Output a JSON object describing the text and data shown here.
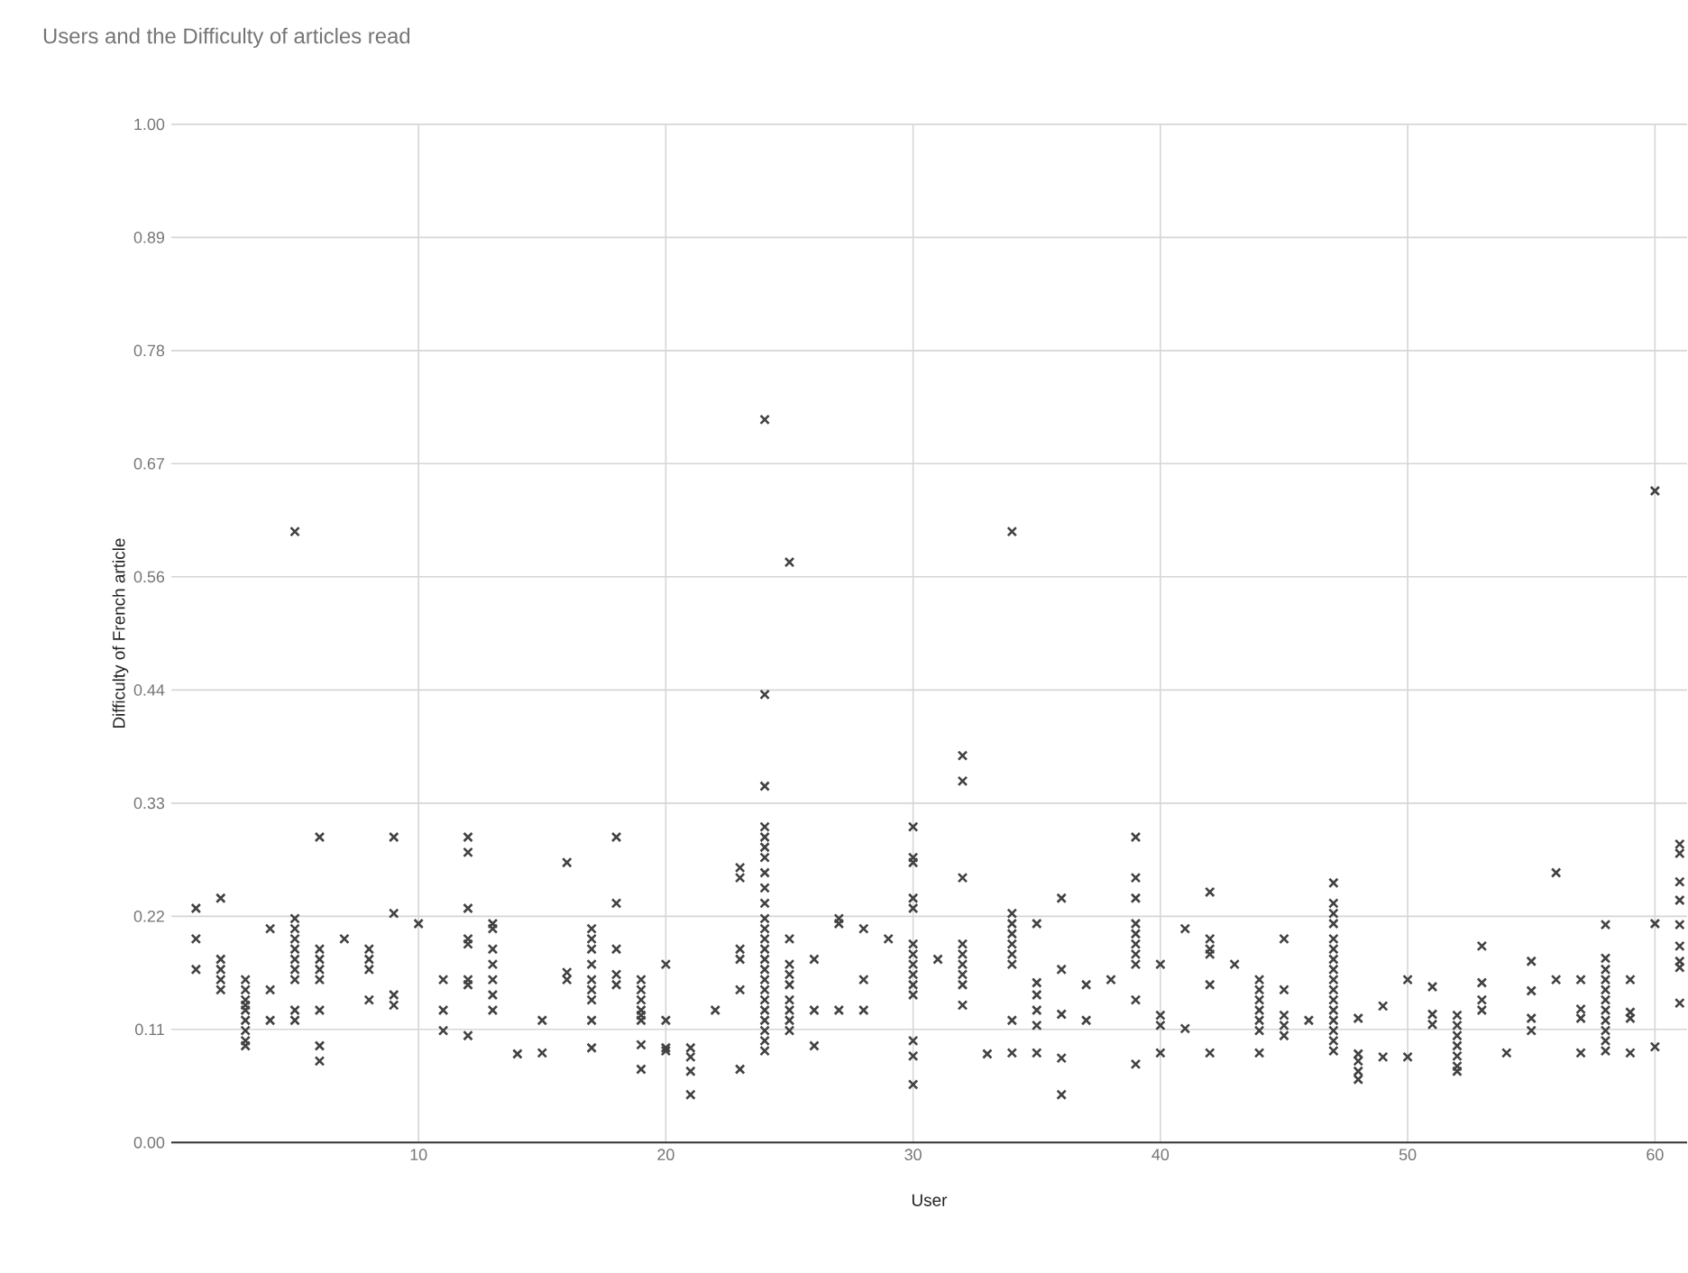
{
  "chart_data": {
    "type": "scatter",
    "title": "Users and the Difficulty of articles read",
    "xlabel": "User",
    "ylabel": "Difficulty of French article",
    "xlim": [
      0,
      61.3
    ],
    "xticks": [
      10,
      20,
      30,
      40,
      50,
      60
    ],
    "ylim": [
      0,
      1
    ],
    "yticks": [
      {
        "value": 0,
        "label": "0.00"
      },
      {
        "value": 0.1111,
        "label": "0.11"
      },
      {
        "value": 0.2222,
        "label": "0.22"
      },
      {
        "value": 0.3333,
        "label": "0.33"
      },
      {
        "value": 0.4444,
        "label": "0.44"
      },
      {
        "value": 0.5556,
        "label": "0.56"
      },
      {
        "value": 0.6667,
        "label": "0.67"
      },
      {
        "value": 0.7778,
        "label": "0.78"
      },
      {
        "value": 0.8889,
        "label": "0.89"
      },
      {
        "value": 1,
        "label": "1.00"
      }
    ],
    "grid": true,
    "marker": "cross",
    "series": [
      {
        "color": "#424242",
        "x": [
          1,
          1,
          1,
          2,
          2,
          2,
          2,
          2,
          3,
          3,
          3,
          3,
          3,
          3,
          3,
          3,
          3,
          4,
          4,
          4,
          5,
          5,
          5,
          5,
          5,
          5,
          5,
          5,
          5,
          5,
          6,
          6,
          6,
          6,
          6,
          6,
          6,
          6,
          7,
          8,
          8,
          8,
          8,
          9,
          9,
          9,
          9,
          10,
          11,
          11,
          11,
          12,
          12,
          12,
          12,
          12,
          12,
          12,
          12,
          13,
          13,
          13,
          13,
          13,
          13,
          13,
          14,
          15,
          15,
          16,
          16,
          16,
          17,
          17,
          17,
          17,
          17,
          17,
          17,
          17,
          17,
          18,
          18,
          18,
          18,
          18,
          19,
          19,
          19,
          19,
          19,
          19,
          19,
          19,
          20,
          20,
          20,
          20,
          21,
          21,
          21,
          21,
          22,
          23,
          23,
          23,
          23,
          23,
          23,
          24,
          24,
          24,
          24,
          24,
          24,
          24,
          24,
          24,
          24,
          24,
          24,
          24,
          24,
          24,
          24,
          24,
          24,
          24,
          24,
          24,
          24,
          24,
          24,
          25,
          25,
          25,
          25,
          25,
          25,
          25,
          25,
          25,
          26,
          26,
          26,
          27,
          27,
          27,
          28,
          28,
          28,
          29,
          30,
          30,
          30,
          30,
          30,
          30,
          30,
          30,
          30,
          30,
          30,
          30,
          30,
          30,
          31,
          32,
          32,
          32,
          32,
          32,
          32,
          32,
          32,
          32,
          33,
          34,
          34,
          34,
          34,
          34,
          34,
          34,
          34,
          34,
          35,
          35,
          35,
          35,
          35,
          35,
          36,
          36,
          36,
          36,
          36,
          37,
          37,
          38,
          39,
          39,
          39,
          39,
          39,
          39,
          39,
          39,
          39,
          39,
          40,
          40,
          40,
          40,
          41,
          41,
          42,
          42,
          42,
          42,
          42,
          42,
          43,
          44,
          44,
          44,
          44,
          44,
          44,
          44,
          45,
          45,
          45,
          45,
          45,
          46,
          47,
          47,
          47,
          47,
          47,
          47,
          47,
          47,
          47,
          47,
          47,
          47,
          47,
          47,
          47,
          47,
          48,
          48,
          48,
          48,
          48,
          49,
          49,
          50,
          50,
          51,
          51,
          51,
          52,
          52,
          52,
          52,
          52,
          52,
          52,
          53,
          53,
          53,
          53,
          54,
          55,
          55,
          55,
          55,
          56,
          56,
          57,
          57,
          57,
          57,
          58,
          58,
          58,
          58,
          58,
          58,
          58,
          58,
          58,
          58,
          58,
          59,
          59,
          59,
          59,
          60,
          60,
          60,
          61,
          61,
          61,
          61,
          61,
          61,
          61,
          61,
          61
        ],
        "values": [
          0.23,
          0.2,
          0.17,
          0.24,
          0.18,
          0.17,
          0.16,
          0.15,
          0.16,
          0.15,
          0.14,
          0.135,
          0.13,
          0.12,
          0.11,
          0.1,
          0.095,
          0.21,
          0.15,
          0.12,
          0.6,
          0.22,
          0.21,
          0.2,
          0.19,
          0.18,
          0.17,
          0.16,
          0.13,
          0.12,
          0.3,
          0.19,
          0.18,
          0.17,
          0.16,
          0.13,
          0.095,
          0.08,
          0.2,
          0.19,
          0.18,
          0.17,
          0.14,
          0.3,
          0.225,
          0.145,
          0.135,
          0.215,
          0.16,
          0.13,
          0.11,
          0.3,
          0.285,
          0.23,
          0.2,
          0.195,
          0.16,
          0.155,
          0.105,
          0.215,
          0.21,
          0.19,
          0.175,
          0.16,
          0.145,
          0.13,
          0.087,
          0.12,
          0.088,
          0.275,
          0.167,
          0.16,
          0.21,
          0.2,
          0.19,
          0.175,
          0.16,
          0.15,
          0.14,
          0.12,
          0.093,
          0.3,
          0.235,
          0.19,
          0.165,
          0.155,
          0.16,
          0.15,
          0.14,
          0.13,
          0.125,
          0.12,
          0.096,
          0.072,
          0.175,
          0.12,
          0.093,
          0.09,
          0.093,
          0.084,
          0.07,
          0.047,
          0.13,
          0.27,
          0.26,
          0.19,
          0.18,
          0.15,
          0.072,
          0.71,
          0.44,
          0.35,
          0.31,
          0.3,
          0.29,
          0.28,
          0.265,
          0.25,
          0.235,
          0.22,
          0.21,
          0.2,
          0.19,
          0.18,
          0.17,
          0.16,
          0.15,
          0.14,
          0.13,
          0.12,
          0.11,
          0.1,
          0.09,
          0.57,
          0.2,
          0.175,
          0.165,
          0.155,
          0.14,
          0.13,
          0.12,
          0.11,
          0.18,
          0.13,
          0.095,
          0.22,
          0.215,
          0.13,
          0.21,
          0.16,
          0.13,
          0.2,
          0.31,
          0.28,
          0.275,
          0.24,
          0.23,
          0.195,
          0.185,
          0.175,
          0.165,
          0.155,
          0.145,
          0.1,
          0.085,
          0.057,
          0.18,
          0.38,
          0.355,
          0.26,
          0.195,
          0.185,
          0.175,
          0.165,
          0.155,
          0.135,
          0.087,
          0.6,
          0.225,
          0.215,
          0.205,
          0.195,
          0.185,
          0.175,
          0.12,
          0.088,
          0.215,
          0.157,
          0.145,
          0.13,
          0.115,
          0.088,
          0.24,
          0.17,
          0.126,
          0.083,
          0.047,
          0.155,
          0.12,
          0.16,
          0.3,
          0.26,
          0.24,
          0.215,
          0.205,
          0.195,
          0.185,
          0.175,
          0.14,
          0.077,
          0.175,
          0.125,
          0.115,
          0.088,
          0.21,
          0.112,
          0.246,
          0.2,
          0.19,
          0.185,
          0.155,
          0.088,
          0.175,
          0.16,
          0.15,
          0.14,
          0.13,
          0.12,
          0.11,
          0.088,
          0.2,
          0.15,
          0.125,
          0.115,
          0.105,
          0.12,
          0.255,
          0.235,
          0.225,
          0.215,
          0.2,
          0.19,
          0.18,
          0.17,
          0.16,
          0.15,
          0.14,
          0.13,
          0.12,
          0.11,
          0.1,
          0.09,
          0.122,
          0.087,
          0.08,
          0.07,
          0.062,
          0.134,
          0.084,
          0.16,
          0.084,
          0.153,
          0.126,
          0.116,
          0.125,
          0.115,
          0.105,
          0.095,
          0.085,
          0.075,
          0.07,
          0.193,
          0.157,
          0.14,
          0.13,
          0.088,
          0.178,
          0.149,
          0.122,
          0.11,
          0.265,
          0.16,
          0.16,
          0.131,
          0.122,
          0.088,
          0.214,
          0.181,
          0.17,
          0.16,
          0.15,
          0.14,
          0.13,
          0.12,
          0.11,
          0.1,
          0.09,
          0.16,
          0.128,
          0.122,
          0.088,
          0.64,
          0.215,
          0.094,
          0.293,
          0.284,
          0.256,
          0.238,
          0.214,
          0.193,
          0.178,
          0.172,
          0.137
        ]
      }
    ]
  }
}
